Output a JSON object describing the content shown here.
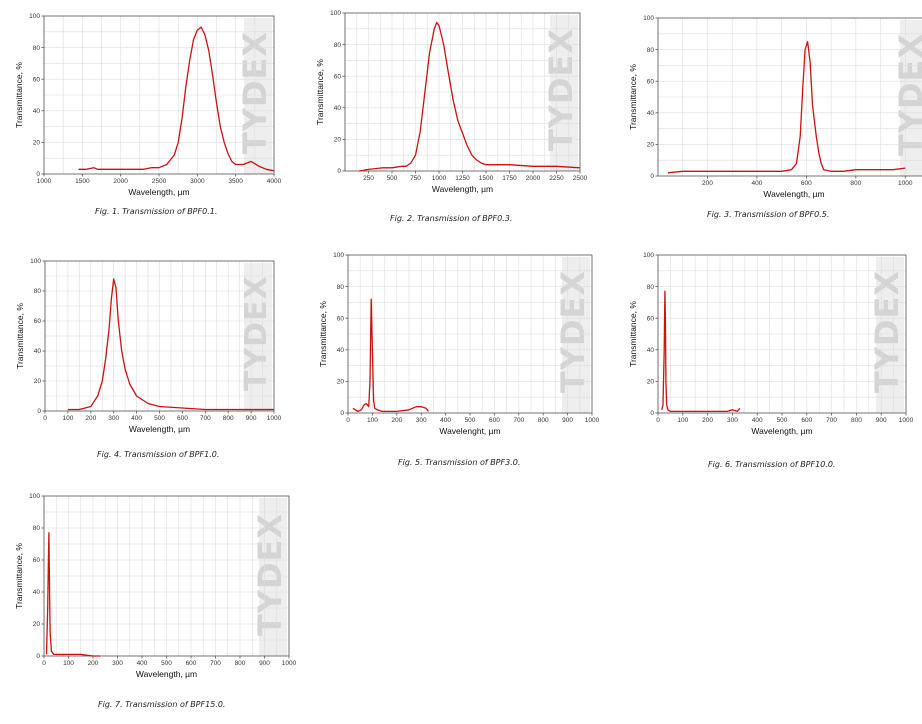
{
  "watermark": "TYDEX",
  "colors": {
    "curve": "#cc1111",
    "grid": "#dcdcdc",
    "frame": "#555555",
    "watermark": "#d4d4d4"
  },
  "chart_data": [
    {
      "type": "line",
      "caption": "Fig. 1. Transmission of BPF0.1.",
      "xlabel": "Wavelength, µm",
      "ylabel": "Transmittance, %",
      "xlim": [
        1000,
        4000
      ],
      "ylim": [
        0,
        100
      ],
      "xticks": [
        1000,
        1500,
        2000,
        2500,
        3000,
        3500,
        4000
      ],
      "yticks": [
        0,
        20,
        40,
        60,
        80,
        100
      ],
      "series": [
        {
          "x": [
            1450,
            1550,
            1650,
            1700,
            1800,
            1900,
            2000,
            2100,
            2200,
            2300,
            2400,
            2500,
            2600,
            2700,
            2750,
            2800,
            2850,
            2900,
            2950,
            3000,
            3050,
            3100,
            3150,
            3200,
            3250,
            3300,
            3350,
            3400,
            3450,
            3500,
            3600,
            3700,
            3800,
            3900,
            4000
          ],
          "y": [
            3,
            3,
            4,
            3,
            3,
            3,
            3,
            3,
            3,
            3,
            4,
            4,
            6,
            12,
            20,
            35,
            55,
            72,
            85,
            91,
            93,
            88,
            78,
            62,
            45,
            30,
            20,
            13,
            8,
            6,
            6,
            8,
            5,
            3,
            2
          ]
        }
      ]
    },
    {
      "type": "line",
      "caption": "Fig. 2. Transmission of BPF0.3.",
      "xlabel": "Wavelength, µm",
      "ylabel": "Transmittance, %",
      "xlim": [
        0,
        2500
      ],
      "ylim": [
        0,
        100
      ],
      "xticks": [
        250,
        500,
        750,
        1000,
        1250,
        1500,
        1750,
        2000,
        2250,
        2500
      ],
      "yticks": [
        0,
        20,
        40,
        60,
        80,
        100
      ],
      "series": [
        {
          "x": [
            150,
            250,
            400,
            500,
            600,
            650,
            700,
            750,
            800,
            850,
            900,
            950,
            975,
            1000,
            1050,
            1100,
            1150,
            1200,
            1250,
            1300,
            1350,
            1400,
            1450,
            1500,
            1750,
            2000,
            2250,
            2500
          ],
          "y": [
            0,
            1,
            2,
            2,
            3,
            3,
            5,
            10,
            25,
            50,
            75,
            90,
            94,
            92,
            80,
            62,
            45,
            32,
            24,
            16,
            10,
            7,
            5,
            4,
            4,
            3,
            3,
            2
          ]
        }
      ]
    },
    {
      "type": "line",
      "caption": "Fig. 3. Transmission of BPF0.5.",
      "xlabel": "Wavelength, µm",
      "ylabel": "Transmittance, %",
      "xlim": [
        0,
        1100
      ],
      "ylim": [
        0,
        100
      ],
      "xticks": [
        200,
        400,
        600,
        800,
        1000
      ],
      "yticks": [
        0,
        20,
        40,
        60,
        80,
        100
      ],
      "series": [
        {
          "x": [
            40,
            100,
            200,
            300,
            400,
            500,
            540,
            560,
            575,
            585,
            595,
            605,
            615,
            625,
            640,
            650,
            660,
            670,
            700,
            750,
            800,
            850,
            900,
            950,
            1000
          ],
          "y": [
            2,
            3,
            3,
            3,
            3,
            3,
            4,
            8,
            25,
            55,
            80,
            85,
            72,
            45,
            25,
            15,
            8,
            4,
            3,
            3,
            4,
            4,
            4,
            4,
            5
          ]
        }
      ]
    },
    {
      "type": "line",
      "caption": "Fig. 4. Transmission of BPF1.0.",
      "xlabel": "Wavelength, µm",
      "ylabel": "Transmittance, %",
      "xlim": [
        0,
        1000
      ],
      "ylim": [
        0,
        100
      ],
      "xticks": [
        0,
        100,
        200,
        300,
        400,
        500,
        600,
        700,
        800,
        900,
        1000
      ],
      "yticks": [
        0,
        20,
        40,
        60,
        80,
        100
      ],
      "series": [
        {
          "x": [
            100,
            150,
            200,
            230,
            250,
            265,
            280,
            290,
            300,
            310,
            320,
            335,
            350,
            370,
            400,
            450,
            500,
            600,
            700,
            800,
            900,
            1000
          ],
          "y": [
            1,
            1,
            3,
            10,
            20,
            35,
            55,
            75,
            88,
            82,
            60,
            40,
            28,
            18,
            10,
            5,
            3,
            2,
            1,
            1,
            1,
            1
          ]
        }
      ]
    },
    {
      "type": "line",
      "caption": "Fig. 5. Transmission of BPF3.0.",
      "xlabel": "Wavelenght, µm",
      "ylabel": "Transmittance, %",
      "xlim": [
        0,
        1000
      ],
      "ylim": [
        0,
        100
      ],
      "xticks": [
        0,
        100,
        200,
        300,
        400,
        500,
        600,
        700,
        800,
        900,
        1000
      ],
      "yticks": [
        0,
        20,
        40,
        60,
        80,
        100
      ],
      "series": [
        {
          "x": [
            20,
            40,
            55,
            65,
            75,
            85,
            90,
            95,
            100,
            105,
            110,
            120,
            140,
            160,
            200,
            250,
            280,
            300,
            320,
            330
          ],
          "y": [
            3,
            1,
            2,
            5,
            6,
            4,
            20,
            72,
            40,
            8,
            3,
            2,
            1,
            1,
            1,
            2,
            4,
            4,
            3,
            1
          ]
        }
      ]
    },
    {
      "type": "line",
      "caption": "Fig. 6. Transmission of BPF10.0.",
      "xlabel": "Wavelength, µm",
      "ylabel": "Transmittance, %",
      "xlim": [
        0,
        1000
      ],
      "ylim": [
        0,
        100
      ],
      "xticks": [
        0,
        100,
        200,
        300,
        400,
        500,
        600,
        700,
        800,
        900,
        1000
      ],
      "yticks": [
        0,
        20,
        40,
        60,
        80,
        100
      ],
      "series": [
        {
          "x": [
            15,
            20,
            25,
            28,
            30,
            32,
            35,
            40,
            50,
            60,
            100,
            200,
            280,
            300,
            320,
            330
          ],
          "y": [
            2,
            5,
            40,
            77,
            60,
            20,
            5,
            2,
            1,
            1,
            1,
            1,
            1,
            2,
            1,
            3
          ]
        }
      ]
    },
    {
      "type": "line",
      "caption": "Fig. 7. Transmission of BPF15.0.",
      "xlabel": "Wavelength, µm",
      "ylabel": "Transmittance, %",
      "xlim": [
        0,
        1000
      ],
      "ylim": [
        0,
        100
      ],
      "xticks": [
        0,
        100,
        200,
        300,
        400,
        500,
        600,
        700,
        800,
        900,
        1000
      ],
      "yticks": [
        0,
        20,
        40,
        60,
        80,
        100
      ],
      "series": [
        {
          "x": [
            10,
            15,
            18,
            20,
            22,
            25,
            28,
            30,
            35,
            40,
            60,
            100,
            150,
            200,
            230
          ],
          "y": [
            1,
            30,
            60,
            77,
            50,
            15,
            8,
            3,
            2,
            1,
            1,
            1,
            1,
            0,
            0
          ]
        }
      ]
    }
  ]
}
